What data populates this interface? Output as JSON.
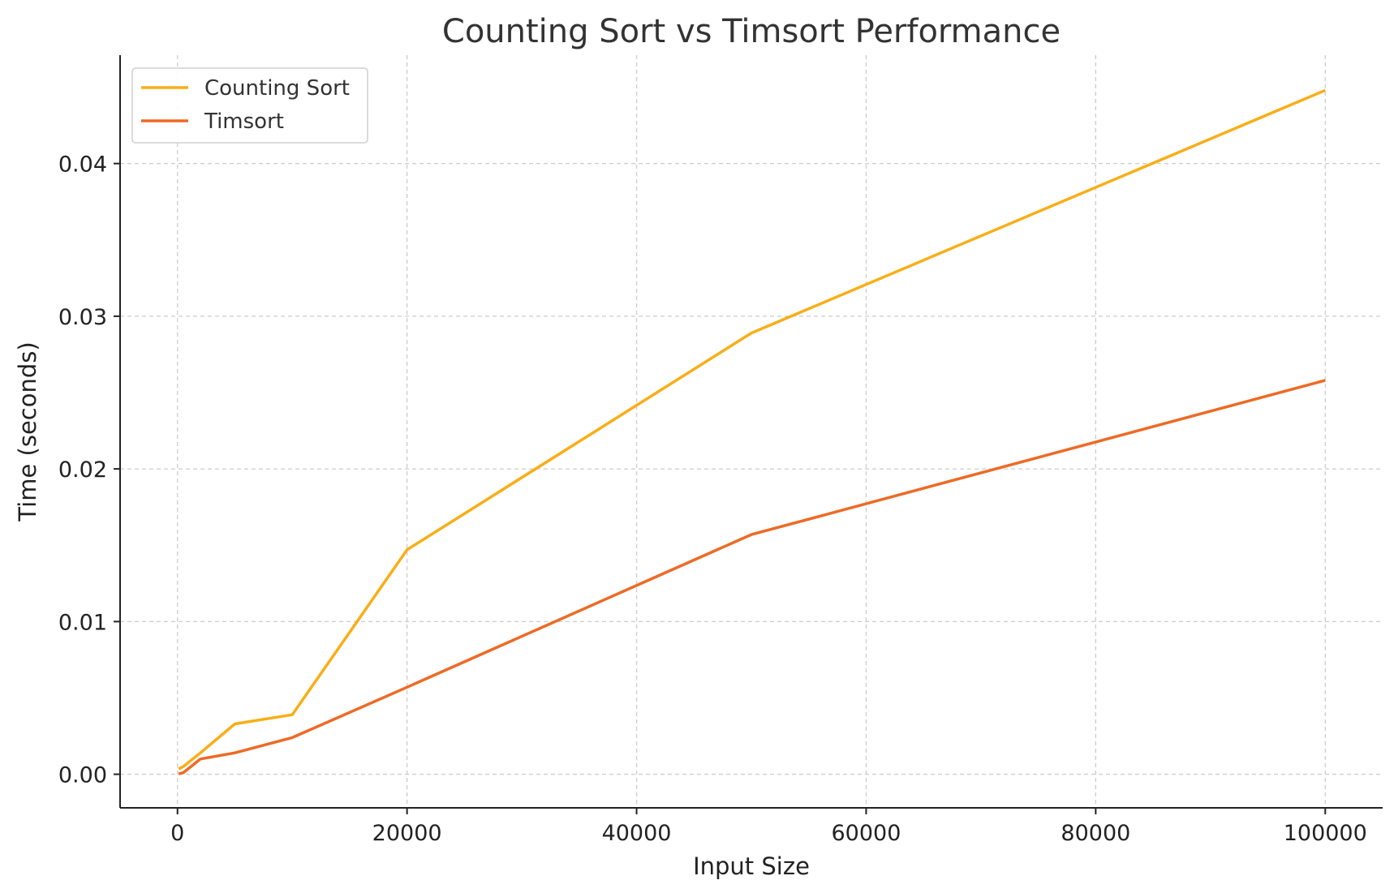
{
  "chart_data": {
    "type": "line",
    "title": "Counting Sort vs Timsort Performance",
    "xlabel": "Input Size",
    "ylabel": "Time (seconds)",
    "xlim": [
      -5000,
      105000
    ],
    "ylim": [
      -0.0022,
      0.0471
    ],
    "xticks": [
      0,
      20000,
      40000,
      60000,
      80000,
      100000
    ],
    "xtick_labels": [
      "0",
      "20000",
      "40000",
      "60000",
      "80000",
      "100000"
    ],
    "yticks": [
      0,
      0.01,
      0.02,
      0.03,
      0.04
    ],
    "ytick_labels": [
      "0.00",
      "0.01",
      "0.02",
      "0.03",
      "0.04"
    ],
    "grid": true,
    "legend_position": "top-left",
    "x": [
      100,
      500,
      1000,
      2000,
      5000,
      10000,
      20000,
      50000,
      100000
    ],
    "series": [
      {
        "name": "Counting Sort",
        "color": "#F9AE17",
        "values": [
          0.00035,
          0.0005,
          0.0008,
          0.0014,
          0.0033,
          0.0039,
          0.0147,
          0.0289,
          0.0448
        ]
      },
      {
        "name": "Timsort",
        "color": "#EE6A25",
        "values": [
          2e-05,
          0.0001,
          0.0004,
          0.001,
          0.0014,
          0.0024,
          0.0057,
          0.0157,
          0.0258
        ]
      }
    ]
  }
}
